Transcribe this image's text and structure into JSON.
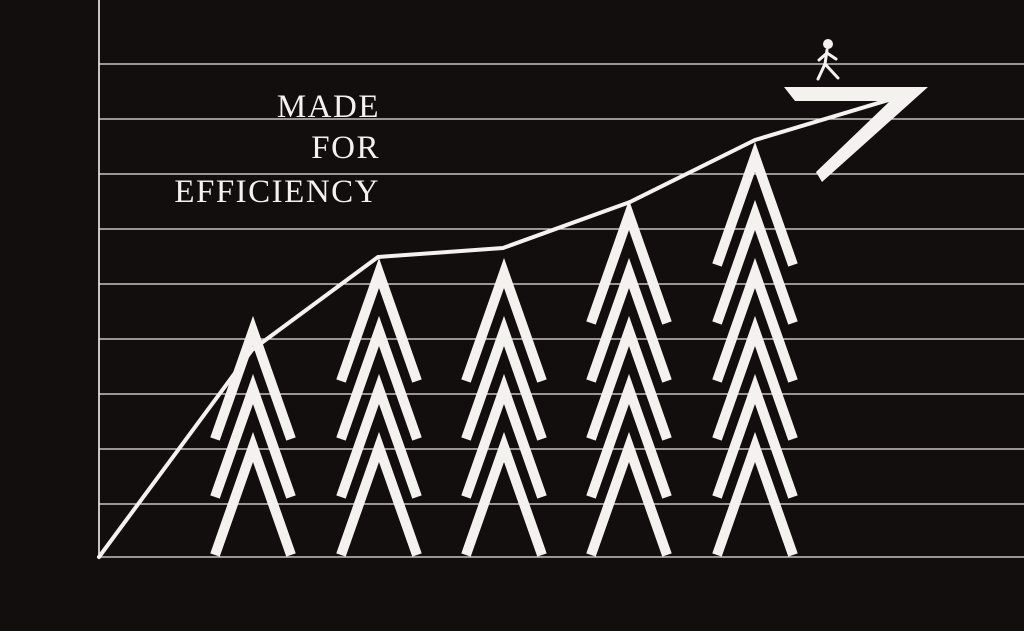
{
  "poster": {
    "background_color": "#120e0e",
    "ink_color": "#f4f2ee",
    "headline": {
      "line1": "MADE",
      "line2": "FOR",
      "line3": "EFFICIENCY"
    },
    "columns_chevron_counts": [
      3,
      4,
      4,
      5,
      6
    ],
    "icons": {
      "arrow": "arrow-icon",
      "walker": "walking-person-icon"
    }
  }
}
